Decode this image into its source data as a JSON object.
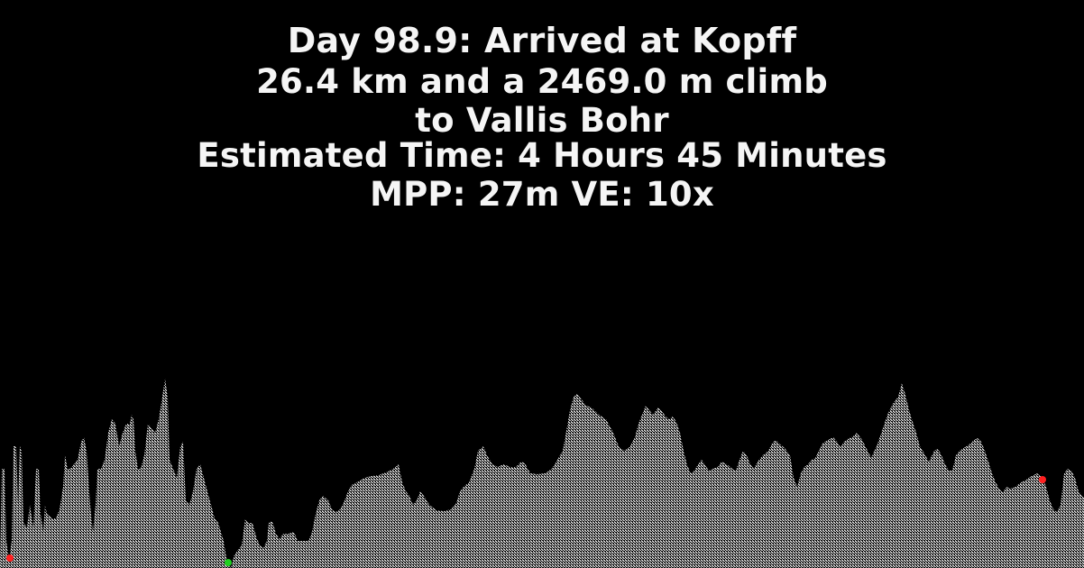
{
  "header": {
    "day_line": "Day 98.9: Arrived at Kopff",
    "distance_line": "26.4 km and a 2469.0 m climb",
    "destination_line": "to Vallis Bohr",
    "time_line": "Estimated Time: 4 Hours 45 Minutes",
    "scale_line": "MPP: 27m VE: 10x"
  },
  "profile": {
    "fill_color": "#cfcfcf",
    "background_color": "#000000",
    "markers": [
      {
        "name": "start-marker",
        "color": "#ff2020"
      },
      {
        "name": "lowest-point-marker",
        "color": "#20d020"
      },
      {
        "name": "highest-point-marker",
        "color": "#ff2020"
      }
    ]
  }
}
